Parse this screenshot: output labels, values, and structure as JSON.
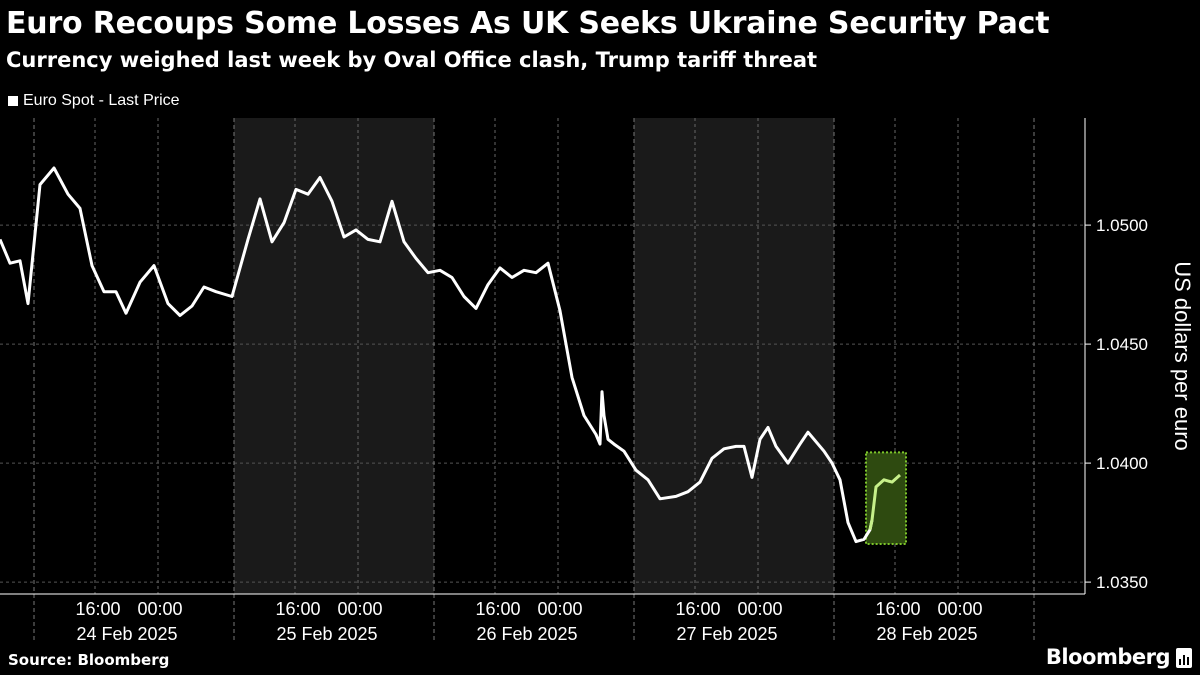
{
  "title": "Euro Recoups Some Losses As UK Seeks Ukraine Security Pact",
  "subtitle": "Currency weighed last week by Oval Office clash, Trump tariff threat",
  "legend": {
    "label": "Euro Spot - Last Price"
  },
  "source": "Source: Bloomberg",
  "brand": "Bloomberg",
  "colors": {
    "background": "#000000",
    "shade": "#1a1a1a",
    "line": "#ffffff",
    "highlight_fill": "#2e4a10",
    "highlight_border": "#7cc52a",
    "highlight_line": "#c7f08a"
  },
  "chart_data": {
    "type": "line",
    "title": "Euro Recoups Some Losses As UK Seeks Ukraine Security Pact",
    "subtitle": "Currency weighed last week by Oval Office clash, Trump tariff threat",
    "ylabel": "US dollars per euro",
    "ylim": [
      1.0345,
      1.0545
    ],
    "yticks": [
      "1.0350",
      "1.0400",
      "1.0450",
      "1.0500"
    ],
    "grid": true,
    "legend_position": "top-left",
    "x_ticks": [
      {
        "time": "16:00",
        "day": 0
      },
      {
        "time": "00:00",
        "day": 0
      },
      {
        "time": "16:00",
        "day": 1
      },
      {
        "time": "00:00",
        "day": 1
      },
      {
        "time": "16:00",
        "day": 2
      },
      {
        "time": "00:00",
        "day": 2
      },
      {
        "time": "16:00",
        "day": 3
      },
      {
        "time": "00:00",
        "day": 3
      },
      {
        "time": "16:00",
        "day": 4
      },
      {
        "time": "00:00",
        "day": 4
      }
    ],
    "days": [
      "24 Feb 2025",
      "25 Feb 2025",
      "26 Feb 2025",
      "27 Feb 2025",
      "28 Feb 2025"
    ],
    "series": [
      {
        "name": "Euro Spot - Last Price",
        "x_days": [
          0.0,
          0.05,
          0.1,
          0.14,
          0.2,
          0.27,
          0.34,
          0.4,
          0.46,
          0.52,
          0.58,
          0.63,
          0.7,
          0.77,
          0.84,
          0.9,
          0.96,
          1.02,
          1.08,
          1.16,
          1.24,
          1.3,
          1.36,
          1.42,
          1.48,
          1.54,
          1.6,
          1.66,
          1.72,
          1.78,
          1.84,
          1.9,
          1.96,
          2.02,
          2.08,
          2.14,
          2.2,
          2.26,
          2.32,
          2.38,
          2.44,
          2.5,
          2.56,
          2.62,
          2.68,
          2.74,
          2.8,
          2.86,
          2.92,
          2.98,
          3.0,
          3.01,
          3.02,
          3.04,
          3.07,
          3.12,
          3.18,
          3.24,
          3.3,
          3.38,
          3.44,
          3.5,
          3.56,
          3.62,
          3.68,
          3.72,
          3.76,
          3.8,
          3.84,
          3.88,
          3.94,
          4.0,
          4.04,
          4.08,
          4.12,
          4.16,
          4.2,
          4.24,
          4.28,
          4.32,
          4.35,
          4.36,
          4.38,
          4.42,
          4.46,
          4.5
        ],
        "values": [
          1.0494,
          1.0484,
          1.0485,
          1.0467,
          1.0517,
          1.0524,
          1.0513,
          1.0507,
          1.0483,
          1.0472,
          1.0472,
          1.0463,
          1.0476,
          1.0483,
          1.0467,
          1.0462,
          1.0466,
          1.0474,
          1.0472,
          1.047,
          1.0494,
          1.0511,
          1.0493,
          1.0501,
          1.0515,
          1.0513,
          1.052,
          1.051,
          1.0495,
          1.0498,
          1.0494,
          1.0493,
          1.051,
          1.0493,
          1.0486,
          1.048,
          1.0481,
          1.0478,
          1.047,
          1.0465,
          1.0475,
          1.0482,
          1.0478,
          1.0481,
          1.048,
          1.0484,
          1.0464,
          1.0436,
          1.042,
          1.0412,
          1.0408,
          1.043,
          1.042,
          1.041,
          1.0408,
          1.0405,
          1.0397,
          1.0393,
          1.0385,
          1.0386,
          1.0388,
          1.0392,
          1.0402,
          1.0406,
          1.0407,
          1.0407,
          1.0394,
          1.041,
          1.0415,
          1.0407,
          1.04,
          1.0408,
          1.0413,
          1.0409,
          1.0405,
          1.04,
          1.0393,
          1.0375,
          1.0367,
          1.0368,
          1.0372,
          1.0376,
          1.039,
          1.0393,
          1.0392,
          1.0395
        ]
      }
    ]
  }
}
